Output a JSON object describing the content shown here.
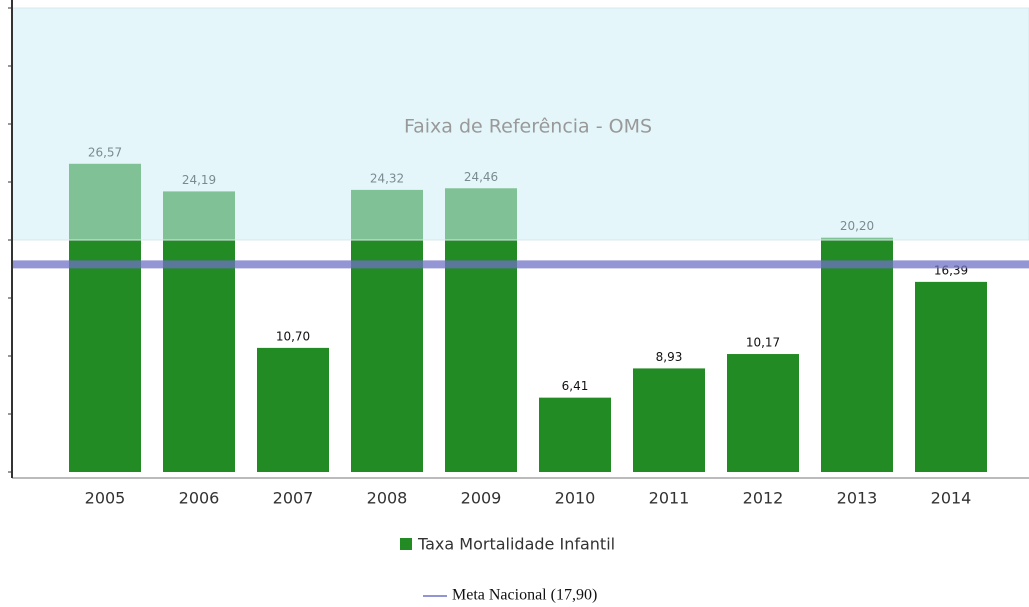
{
  "chart_data": {
    "type": "bar",
    "categories": [
      "2005",
      "2006",
      "2007",
      "2008",
      "2009",
      "2010",
      "2011",
      "2012",
      "2013",
      "2014"
    ],
    "series": [
      {
        "name": "Taxa Mortalidade Infantil",
        "color": "#238b23",
        "values": [
          26.57,
          24.19,
          10.7,
          24.32,
          24.46,
          6.41,
          8.93,
          10.17,
          20.2,
          16.39
        ],
        "value_labels": [
          "26,57",
          "24,19",
          "10,70",
          "24,32",
          "24,46",
          "6,41",
          "8,93",
          "10,17",
          "20,20",
          "16,39"
        ]
      }
    ],
    "ylim": [
      0,
      40
    ],
    "yticks": [
      0,
      5,
      10,
      15,
      20,
      25,
      30,
      35,
      40
    ],
    "reference_band": {
      "label": "Faixa de Referência - OMS",
      "range": [
        20,
        40
      ],
      "color": "#cdeef5"
    },
    "target_line": {
      "value": 17.9,
      "label": "Meta Nacional (17,90)",
      "color": "#6f72c6"
    }
  }
}
